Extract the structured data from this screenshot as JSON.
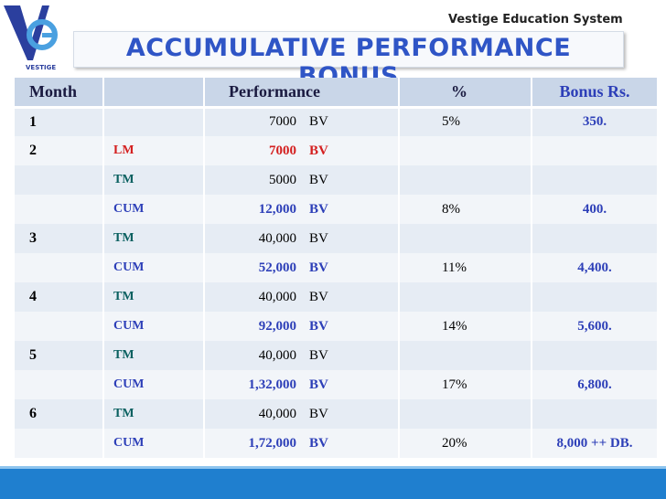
{
  "logo": {
    "text": "VESTIGE"
  },
  "header": {
    "system": "Vestige Education System",
    "title": "ACCUMULATIVE PERFORMANCE BONUS"
  },
  "table": {
    "columns": {
      "month": "Month",
      "performance": "Performance",
      "percent": "%",
      "bonus": "Bonus Rs."
    },
    "rows": [
      {
        "month": "1",
        "amount": "7000",
        "unit": "BV",
        "percent": "5%",
        "bonus": "350."
      },
      {
        "month": "2",
        "label": "LM",
        "amount": "7000",
        "unit": "BV"
      },
      {
        "label": "TM",
        "amount": "5000",
        "unit": "BV"
      },
      {
        "label": "CUM",
        "amount": "12,000",
        "unit": "BV",
        "percent": "8%",
        "bonus": "400."
      },
      {
        "month": "3",
        "label": "TM",
        "amount": "40,000",
        "unit": "BV"
      },
      {
        "label": "CUM",
        "amount": "52,000",
        "unit": "BV",
        "percent": "11%",
        "bonus": "4,400."
      },
      {
        "month": "4",
        "label": "TM",
        "amount": "40,000",
        "unit": "BV"
      },
      {
        "label": "CUM",
        "amount": "92,000",
        "unit": "BV",
        "percent": "14%",
        "bonus": "5,600."
      },
      {
        "month": "5",
        "label": "TM",
        "amount": "40,000",
        "unit": "BV"
      },
      {
        "label": "CUM",
        "amount": "1,32,000",
        "unit": "BV",
        "percent": "17%",
        "bonus": "6,800."
      },
      {
        "month": "6",
        "label": "TM",
        "amount": "40,000",
        "unit": "BV"
      },
      {
        "label": "CUM",
        "amount": "1,72,000",
        "unit": "BV",
        "percent": "20%",
        "bonus": "8,000 ++ DB."
      }
    ]
  }
}
